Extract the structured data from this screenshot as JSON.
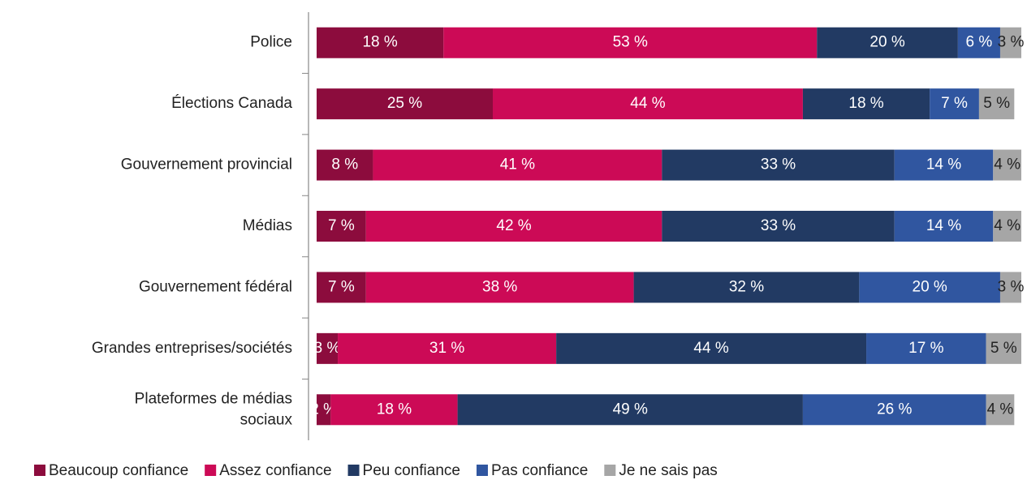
{
  "chart_data": {
    "type": "stacked-bar-horizontal",
    "categories": [
      "Police",
      "Élections Canada",
      "Gouvernement provincial",
      "Médias",
      "Gouvernement fédéral",
      "Grandes entreprises/sociétés",
      "Plateformes de médias sociaux"
    ],
    "xlim": [
      0,
      100
    ],
    "legend": "bottom",
    "series": [
      {
        "name": "Beaucoup confiance",
        "color": "#8c0c3d",
        "label_color": "#ffffff",
        "values": [
          18,
          25,
          8,
          7,
          7,
          3,
          2
        ],
        "value_labels": [
          "18 %",
          "25 %",
          "8 %",
          "7 %",
          "7 %",
          "3 %",
          "2 %"
        ]
      },
      {
        "name": "Assez confiance",
        "color": "#cc0a56",
        "label_color": "#ffffff",
        "values": [
          53,
          44,
          41,
          42,
          38,
          31,
          18
        ],
        "value_labels": [
          "53 %",
          "44 %",
          "41 %",
          "42 %",
          "38 %",
          "31 %",
          "18 %"
        ]
      },
      {
        "name": "Peu confiance",
        "color": "#223a63",
        "label_color": "#ffffff",
        "values": [
          20,
          18,
          33,
          33,
          32,
          44,
          49
        ],
        "value_labels": [
          "20 %",
          "18 %",
          "33 %",
          "33 %",
          "32 %",
          "44 %",
          "49 %"
        ]
      },
      {
        "name": "Pas confiance",
        "color": "#3056a0",
        "label_color": "#ffffff",
        "values": [
          6,
          7,
          14,
          14,
          20,
          17,
          26
        ],
        "value_labels": [
          "6 %",
          "7 %",
          "14 %",
          "14 %",
          "20 %",
          "17 %",
          "26 %"
        ]
      },
      {
        "name": "Je ne sais pas",
        "color": "#a6a6a6",
        "label_color": "#222222",
        "values": [
          3,
          5,
          4,
          4,
          3,
          5,
          4
        ],
        "value_labels": [
          "3 %",
          "5 %",
          "4 %",
          "4 %",
          "3 %",
          "5 %",
          "4 %"
        ]
      }
    ]
  }
}
